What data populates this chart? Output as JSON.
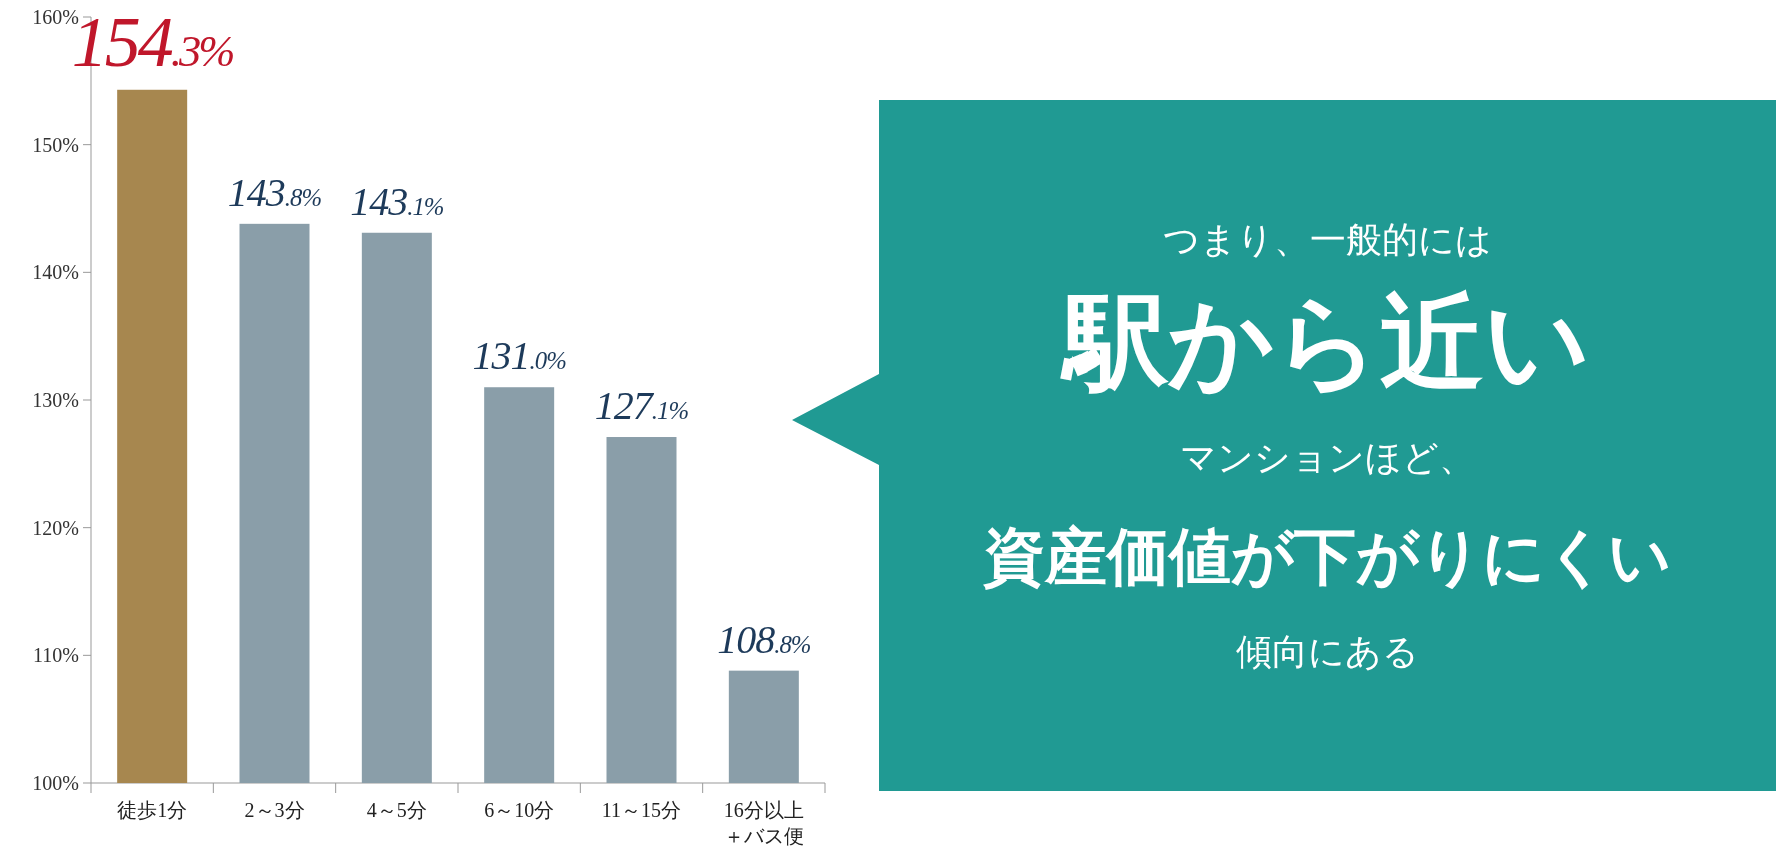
{
  "chart_data": {
    "type": "bar",
    "categories": [
      "徒歩1分",
      "2～3分",
      "4～5分",
      "6～10分",
      "11～15分",
      "16分以上＋バス便"
    ],
    "values": [
      154.3,
      143.8,
      143.1,
      131.0,
      127.1,
      108.8
    ],
    "colors": [
      "#a7874f",
      "#8a9ea9",
      "#8a9ea9",
      "#8a9ea9",
      "#8a9ea9",
      "#8a9ea9"
    ],
    "value_labels": [
      "154.3%",
      "143.8%",
      "143.1%",
      "131.0%",
      "127.1%",
      "108.8%"
    ],
    "ylim": [
      100,
      160
    ],
    "yticks": [
      {
        "value": 100,
        "label": "100%"
      },
      {
        "value": 110,
        "label": "110%"
      },
      {
        "value": 120,
        "label": "120%"
      },
      {
        "value": 130,
        "label": "130%"
      },
      {
        "value": 140,
        "label": "140%"
      },
      {
        "value": 150,
        "label": "150%"
      },
      {
        "value": 160,
        "label": "160%"
      }
    ],
    "annotations": [
      "つまり、一般的には",
      "駅から近い",
      "マンションほど、",
      "資産価値が下がりにくい",
      "傾向にある"
    ],
    "grid": false
  }
}
